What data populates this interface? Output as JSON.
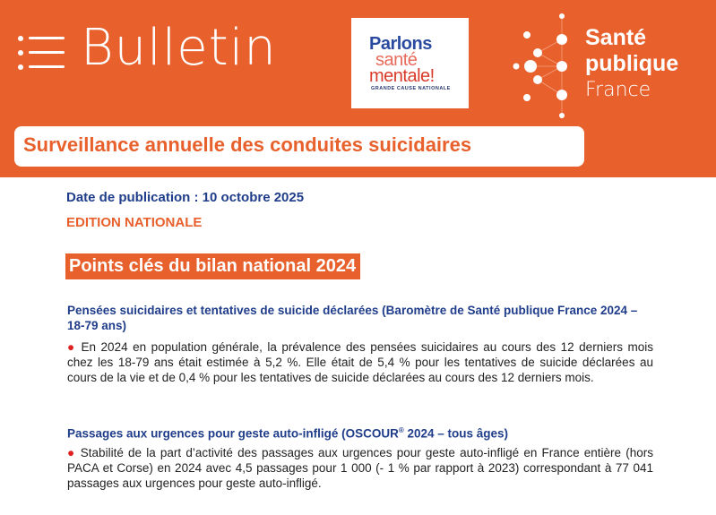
{
  "header": {
    "bulletin_title": "Bulletin",
    "partner_logo": {
      "line1": "Parlons",
      "line2": "santé",
      "line3": "mentale!",
      "tagline": "GRANDE CAUSE NATIONALE"
    },
    "org_logo": {
      "line1": "Santé",
      "line2": "publique",
      "line3": "France"
    },
    "subtitle": "Surveillance annuelle des conduites suicidaires",
    "colors": {
      "brand_orange": "#e8602c",
      "text_blue": "#1f3d8a",
      "bullet_red": "#e02020"
    }
  },
  "meta": {
    "publication_date": "Date de publication : 10 octobre 2025",
    "edition": "EDITION NATIONALE"
  },
  "key_points": {
    "title": "Points clés du bilan national 2024",
    "sections": [
      {
        "heading": "Pensées suicidaires et tentatives de suicide déclarées (Baromètre de Santé publique France 2024 – 18-79 ans)",
        "bullet": "●",
        "text": "En 2024 en population générale, la prévalence des pensées suicidaires au cours des 12 derniers mois chez les 18-79 ans était estimée à 5,2 %. Elle était de 5,4 % pour les tentatives de suicide déclarées au cours de la vie et de 0,4 % pour les tentatives de suicide déclarées au cours des 12 derniers mois."
      },
      {
        "heading_pre": "Passages aux urgences pour geste auto-infligé (OSCOUR",
        "heading_sup": "®",
        "heading_post": " 2024 – tous âges)",
        "bullet": "●",
        "text": "Stabilité de la part d’activité des passages aux urgences pour geste auto-infligé en France entière (hors PACA et Corse) en 2024 avec 4,5 passages pour 1 000 (- 1 % par rapport à 2023) correspondant à 77 041 passages aux urgences pour geste auto-infligé."
      }
    ]
  }
}
